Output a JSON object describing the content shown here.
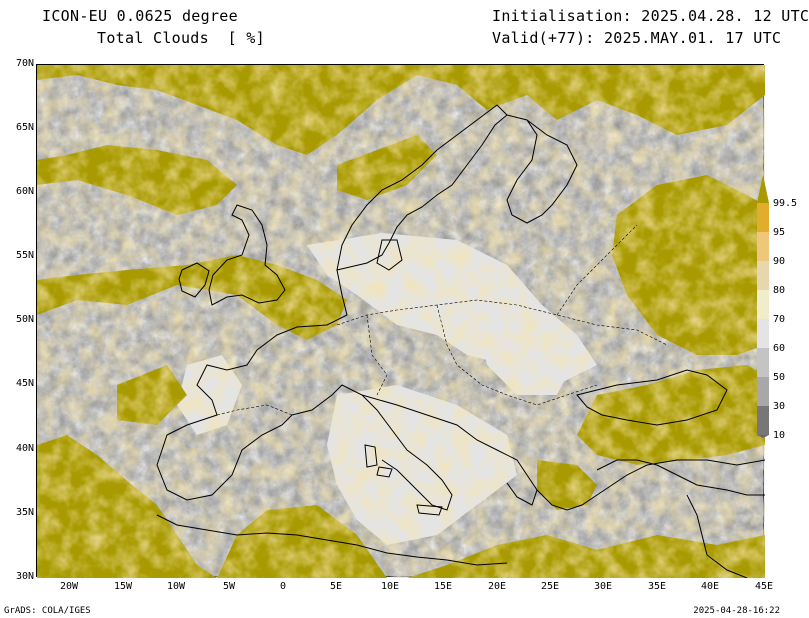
{
  "header": {
    "model": "ICON-EU 0.0625 degree",
    "field": "Total Clouds  [ %]",
    "init": "Initialisation: 2025.04.28. 12 UTC",
    "valid": "Valid(+77): 2025.MAY.01. 17 UTC"
  },
  "axes": {
    "lat_ticks": [
      "70N",
      "65N",
      "60N",
      "55N",
      "50N",
      "45N",
      "40N",
      "35N",
      "30N"
    ],
    "lon_ticks": [
      "20W",
      "15W",
      "10W",
      "5W",
      "0",
      "5E",
      "10E",
      "15E",
      "20E",
      "25E",
      "30E",
      "35E",
      "40E",
      "45E"
    ],
    "lat_range": [
      30,
      70
    ],
    "lon_range": [
      -23,
      45
    ]
  },
  "colorbar": {
    "labels": [
      "99.5",
      "95",
      "90",
      "80",
      "70",
      "60",
      "50",
      "30",
      "10"
    ],
    "colors": [
      "#a89a00",
      "#e2ac2c",
      "#eec77a",
      "#e7d6ae",
      "#efedca",
      "#e4e4e4",
      "#c4c4c4",
      "#a8a8a8",
      "#8b8b8b",
      "#6a6a6a"
    ]
  },
  "footer": {
    "left": "GrADS: COLA/IGES",
    "right": "2025-04-28-16:22"
  }
}
